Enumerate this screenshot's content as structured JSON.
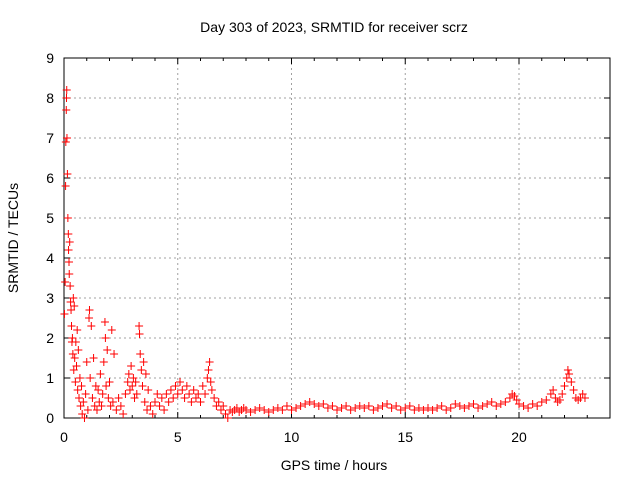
{
  "chart_data": {
    "type": "scatter",
    "title": "Day 303 of 2023, SRMTID for receiver scrz",
    "xlabel": "GPS time / hours",
    "ylabel": "SRMTID / TECUs",
    "xlim": [
      0,
      24
    ],
    "ylim": [
      0,
      9
    ],
    "xticks": [
      0,
      5,
      10,
      15,
      20
    ],
    "yticks": [
      0,
      1,
      2,
      3,
      4,
      5,
      6,
      7,
      8,
      9
    ],
    "grid": true,
    "marker": "+",
    "series": [
      {
        "name": "SRMTID",
        "color": "#ff0000",
        "points": [
          [
            0.02,
            2.6
          ],
          [
            0.05,
            3.4
          ],
          [
            0.07,
            5.8
          ],
          [
            0.08,
            6.9
          ],
          [
            0.1,
            7.7
          ],
          [
            0.11,
            8.0
          ],
          [
            0.12,
            8.2
          ],
          [
            0.13,
            7.0
          ],
          [
            0.15,
            6.1
          ],
          [
            0.17,
            5.0
          ],
          [
            0.19,
            4.6
          ],
          [
            0.2,
            4.2
          ],
          [
            0.22,
            3.9
          ],
          [
            0.23,
            3.6
          ],
          [
            0.25,
            4.4
          ],
          [
            0.27,
            3.3
          ],
          [
            0.29,
            2.9
          ],
          [
            0.31,
            2.7
          ],
          [
            0.33,
            2.3
          ],
          [
            0.35,
            1.9
          ],
          [
            0.37,
            2.0
          ],
          [
            0.39,
            1.6
          ],
          [
            0.41,
            3.0
          ],
          [
            0.43,
            1.2
          ],
          [
            0.45,
            2.8
          ],
          [
            0.47,
            1.5
          ],
          [
            0.5,
            0.9
          ],
          [
            0.52,
            1.9
          ],
          [
            0.55,
            1.3
          ],
          [
            0.58,
            2.2
          ],
          [
            0.6,
            0.7
          ],
          [
            0.63,
            1.7
          ],
          [
            0.66,
            0.5
          ],
          [
            0.7,
            1.0
          ],
          [
            0.73,
            0.3
          ],
          [
            0.77,
            0.8
          ],
          [
            0.8,
            0.1
          ],
          [
            0.85,
            0.4
          ],
          [
            0.9,
            0.0
          ],
          [
            0.95,
            0.6
          ],
          [
            1.0,
            1.4
          ],
          [
            1.05,
            0.2
          ],
          [
            1.1,
            2.5
          ],
          [
            1.12,
            2.7
          ],
          [
            1.15,
            1.0
          ],
          [
            1.2,
            2.3
          ],
          [
            1.25,
            0.5
          ],
          [
            1.3,
            1.5
          ],
          [
            1.35,
            0.3
          ],
          [
            1.4,
            0.8
          ],
          [
            1.45,
            0.2
          ],
          [
            1.5,
            0.7
          ],
          [
            1.55,
            0.4
          ],
          [
            1.6,
            1.1
          ],
          [
            1.65,
            0.3
          ],
          [
            1.7,
            0.6
          ],
          [
            1.75,
            1.4
          ],
          [
            1.8,
            2.4
          ],
          [
            1.82,
            2.0
          ],
          [
            1.85,
            0.8
          ],
          [
            1.9,
            1.7
          ],
          [
            1.95,
            0.5
          ],
          [
            2.0,
            0.9
          ],
          [
            2.05,
            0.3
          ],
          [
            2.1,
            2.2
          ],
          [
            2.15,
            0.4
          ],
          [
            2.2,
            1.6
          ],
          [
            2.3,
            0.2
          ],
          [
            2.4,
            0.5
          ],
          [
            2.5,
            0.3
          ],
          [
            2.6,
            0.1
          ],
          [
            2.7,
            0.6
          ],
          [
            2.8,
            0.9
          ],
          [
            2.85,
            1.1
          ],
          [
            2.9,
            0.7
          ],
          [
            2.95,
            1.3
          ],
          [
            3.0,
            0.8
          ],
          [
            3.05,
            1.0
          ],
          [
            3.1,
            0.5
          ],
          [
            3.15,
            0.9
          ],
          [
            3.2,
            0.6
          ],
          [
            3.3,
            2.3
          ],
          [
            3.32,
            2.1
          ],
          [
            3.35,
            1.6
          ],
          [
            3.4,
            1.2
          ],
          [
            3.45,
            0.8
          ],
          [
            3.5,
            1.4
          ],
          [
            3.55,
            0.4
          ],
          [
            3.6,
            1.1
          ],
          [
            3.65,
            0.2
          ],
          [
            3.7,
            0.7
          ],
          [
            3.8,
            0.3
          ],
          [
            3.9,
            0.1
          ],
          [
            4.0,
            0.4
          ],
          [
            4.1,
            0.6
          ],
          [
            4.2,
            0.3
          ],
          [
            4.3,
            0.5
          ],
          [
            4.4,
            0.2
          ],
          [
            4.5,
            0.6
          ],
          [
            4.6,
            0.4
          ],
          [
            4.7,
            0.7
          ],
          [
            4.8,
            0.5
          ],
          [
            4.9,
            0.8
          ],
          [
            5.0,
            0.6
          ],
          [
            5.1,
            0.9
          ],
          [
            5.2,
            0.7
          ],
          [
            5.3,
            0.5
          ],
          [
            5.4,
            0.8
          ],
          [
            5.5,
            0.6
          ],
          [
            5.6,
            0.4
          ],
          [
            5.7,
            0.7
          ],
          [
            5.8,
            0.5
          ],
          [
            5.9,
            0.6
          ],
          [
            6.0,
            0.4
          ],
          [
            6.1,
            0.8
          ],
          [
            6.2,
            0.6
          ],
          [
            6.3,
            1.0
          ],
          [
            6.35,
            1.2
          ],
          [
            6.4,
            1.4
          ],
          [
            6.45,
            0.9
          ],
          [
            6.5,
            0.7
          ],
          [
            6.6,
            0.5
          ],
          [
            6.7,
            0.3
          ],
          [
            6.8,
            0.4
          ],
          [
            6.9,
            0.2
          ],
          [
            7.0,
            0.3
          ],
          [
            7.1,
            0.1
          ],
          [
            7.2,
            0.0
          ],
          [
            7.3,
            0.2
          ],
          [
            7.4,
            0.15
          ],
          [
            7.5,
            0.2
          ],
          [
            7.6,
            0.25
          ],
          [
            7.7,
            0.15
          ],
          [
            7.8,
            0.2
          ],
          [
            7.9,
            0.25
          ],
          [
            8.0,
            0.2
          ],
          [
            8.2,
            0.15
          ],
          [
            8.4,
            0.2
          ],
          [
            8.6,
            0.25
          ],
          [
            8.8,
            0.2
          ],
          [
            9.0,
            0.15
          ],
          [
            9.2,
            0.2
          ],
          [
            9.4,
            0.25
          ],
          [
            9.6,
            0.2
          ],
          [
            9.8,
            0.3
          ],
          [
            10.0,
            0.2
          ],
          [
            10.2,
            0.25
          ],
          [
            10.4,
            0.3
          ],
          [
            10.6,
            0.35
          ],
          [
            10.8,
            0.4
          ],
          [
            11.0,
            0.35
          ],
          [
            11.2,
            0.3
          ],
          [
            11.4,
            0.35
          ],
          [
            11.6,
            0.25
          ],
          [
            11.8,
            0.3
          ],
          [
            12.0,
            0.2
          ],
          [
            12.2,
            0.25
          ],
          [
            12.4,
            0.3
          ],
          [
            12.6,
            0.2
          ],
          [
            12.8,
            0.25
          ],
          [
            13.0,
            0.3
          ],
          [
            13.2,
            0.25
          ],
          [
            13.4,
            0.3
          ],
          [
            13.6,
            0.2
          ],
          [
            13.8,
            0.25
          ],
          [
            14.0,
            0.3
          ],
          [
            14.2,
            0.35
          ],
          [
            14.4,
            0.25
          ],
          [
            14.6,
            0.3
          ],
          [
            14.8,
            0.2
          ],
          [
            15.0,
            0.25
          ],
          [
            15.2,
            0.3
          ],
          [
            15.4,
            0.2
          ],
          [
            15.6,
            0.25
          ],
          [
            15.8,
            0.2
          ],
          [
            16.0,
            0.25
          ],
          [
            16.2,
            0.2
          ],
          [
            16.4,
            0.25
          ],
          [
            16.6,
            0.3
          ],
          [
            16.8,
            0.2
          ],
          [
            17.0,
            0.25
          ],
          [
            17.2,
            0.35
          ],
          [
            17.4,
            0.3
          ],
          [
            17.6,
            0.25
          ],
          [
            17.8,
            0.3
          ],
          [
            18.0,
            0.35
          ],
          [
            18.2,
            0.25
          ],
          [
            18.4,
            0.3
          ],
          [
            18.6,
            0.35
          ],
          [
            18.8,
            0.4
          ],
          [
            19.0,
            0.3
          ],
          [
            19.2,
            0.35
          ],
          [
            19.4,
            0.4
          ],
          [
            19.6,
            0.5
          ],
          [
            19.7,
            0.6
          ],
          [
            19.8,
            0.55
          ],
          [
            19.9,
            0.45
          ],
          [
            20.0,
            0.35
          ],
          [
            20.2,
            0.3
          ],
          [
            20.4,
            0.25
          ],
          [
            20.6,
            0.35
          ],
          [
            20.8,
            0.3
          ],
          [
            21.0,
            0.4
          ],
          [
            21.2,
            0.45
          ],
          [
            21.4,
            0.6
          ],
          [
            21.5,
            0.7
          ],
          [
            21.6,
            0.5
          ],
          [
            21.7,
            0.4
          ],
          [
            21.8,
            0.45
          ],
          [
            21.9,
            0.6
          ],
          [
            22.0,
            0.8
          ],
          [
            22.1,
            1.0
          ],
          [
            22.15,
            1.2
          ],
          [
            22.2,
            1.1
          ],
          [
            22.3,
            0.9
          ],
          [
            22.4,
            0.7
          ],
          [
            22.5,
            0.5
          ],
          [
            22.6,
            0.45
          ],
          [
            22.7,
            0.5
          ],
          [
            22.8,
            0.6
          ],
          [
            22.9,
            0.5
          ]
        ]
      }
    ]
  }
}
